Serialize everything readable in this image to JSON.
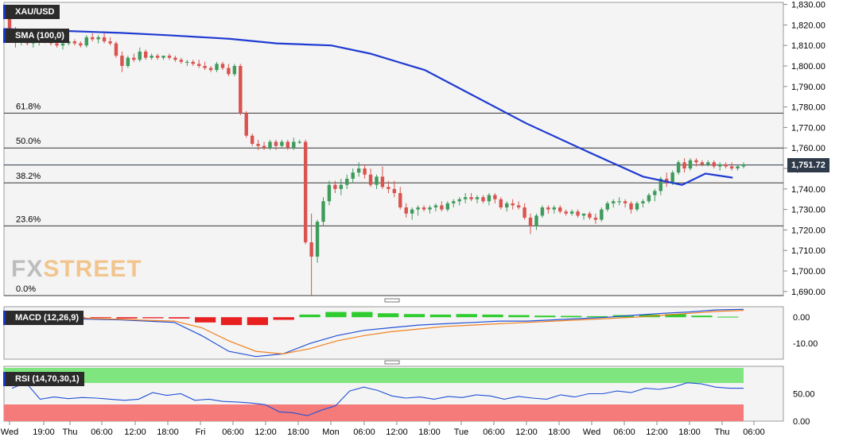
{
  "labels": {
    "symbol": "XAU/USD",
    "sma": "SMA (100,0)",
    "macd": "MACD (12,26,9)",
    "rsi": "RSI (14,70,30,1)",
    "watermark_fx": "FX",
    "watermark_street": "STREET",
    "last_price": "1,751.72"
  },
  "colors": {
    "up": "#3d9b5c",
    "down": "#d9534f",
    "sma": "#1f3bd1",
    "macd_line": "#2251d6",
    "signal_line": "#f0811f",
    "hist_pos": "#2ecc2e",
    "hist_neg": "#e82020",
    "rsi_over": "#7fe57f",
    "rsi_under": "#f57b7b"
  },
  "chart_data": [
    {
      "type": "candlestick",
      "title": "XAU/USD",
      "y_ticks": [
        "1,830.00",
        "1,820.00",
        "1,810.00",
        "1,800.00",
        "1,790.00",
        "1,780.00",
        "1,770.00",
        "1,760.00",
        "1,750.00",
        "1,740.00",
        "1,730.00",
        "1,720.00",
        "1,710.00",
        "1,700.00",
        "1,690.00"
      ],
      "ylim": [
        1688,
        1831
      ],
      "x_ticks": [
        "Wed",
        "19:00",
        "Thu",
        "06:00",
        "12:00",
        "18:00",
        "Fri",
        "06:00",
        "12:00",
        "18:00",
        "Mon",
        "06:00",
        "12:00",
        "18:00",
        "Tue",
        "06:00",
        "12:00",
        "18:00",
        "Wed",
        "06:00",
        "12:00",
        "18:00",
        "Thu",
        "06:00"
      ],
      "fib_levels": [
        {
          "label": "61.8%",
          "value": 1777
        },
        {
          "label": "50.0%",
          "value": 1760
        },
        {
          "label": "38.2%",
          "value": 1743
        },
        {
          "label": "23.6%",
          "value": 1722
        },
        {
          "label": "0.0%",
          "value": 1688
        }
      ],
      "last_price": 1751.72,
      "candles": [
        [
          1828,
          1828,
          1816,
          1818
        ],
        [
          1818,
          1819,
          1809,
          1812
        ],
        [
          1812,
          1815,
          1810,
          1813
        ],
        [
          1813,
          1815,
          1810,
          1811
        ],
        [
          1811,
          1813,
          1809,
          1812
        ],
        [
          1812,
          1814,
          1810,
          1813
        ],
        [
          1813,
          1814,
          1811,
          1812
        ],
        [
          1812,
          1814,
          1810,
          1811
        ],
        [
          1811,
          1812,
          1809,
          1810
        ],
        [
          1810,
          1812,
          1808,
          1811
        ],
        [
          1811,
          1813,
          1810,
          1812
        ],
        [
          1812,
          1813,
          1810,
          1811
        ],
        [
          1811,
          1812,
          1809,
          1810
        ],
        [
          1810,
          1815,
          1809,
          1814
        ],
        [
          1814,
          1816,
          1812,
          1813
        ],
        [
          1813,
          1815,
          1811,
          1814
        ],
        [
          1814,
          1816,
          1811,
          1812
        ],
        [
          1812,
          1814,
          1810,
          1811
        ],
        [
          1811,
          1812,
          1804,
          1805
        ],
        [
          1805,
          1807,
          1797,
          1800
        ],
        [
          1800,
          1805,
          1799,
          1804
        ],
        [
          1804,
          1806,
          1802,
          1803
        ],
        [
          1803,
          1809,
          1802,
          1807
        ],
        [
          1807,
          1808,
          1803,
          1804
        ],
        [
          1804,
          1806,
          1803,
          1805
        ],
        [
          1805,
          1806,
          1803,
          1804
        ],
        [
          1804,
          1805,
          1803,
          1805
        ],
        [
          1805,
          1806,
          1803,
          1804
        ],
        [
          1804,
          1805,
          1802,
          1803
        ],
        [
          1803,
          1804,
          1801,
          1802
        ],
        [
          1802,
          1803,
          1800,
          1802
        ],
        [
          1802,
          1803,
          1800,
          1801
        ],
        [
          1801,
          1803,
          1799,
          1800
        ],
        [
          1800,
          1802,
          1798,
          1799
        ],
        [
          1799,
          1800,
          1797,
          1798
        ],
        [
          1798,
          1802,
          1797,
          1801
        ],
        [
          1801,
          1802,
          1798,
          1799
        ],
        [
          1799,
          1801,
          1795,
          1796
        ],
        [
          1796,
          1801,
          1795,
          1800
        ],
        [
          1800,
          1801,
          1776,
          1777
        ],
        [
          1777,
          1778,
          1765,
          1766
        ],
        [
          1766,
          1767,
          1761,
          1762
        ],
        [
          1762,
          1764,
          1759,
          1761
        ],
        [
          1761,
          1763,
          1759,
          1760
        ],
        [
          1760,
          1764,
          1759,
          1763
        ],
        [
          1763,
          1764,
          1759,
          1761
        ],
        [
          1761,
          1764,
          1760,
          1763
        ],
        [
          1763,
          1764,
          1759,
          1760
        ],
        [
          1760,
          1765,
          1759,
          1763
        ],
        [
          1763,
          1764,
          1762,
          1763
        ],
        [
          1763,
          1764,
          1713,
          1714
        ],
        [
          1714,
          1728,
          1688,
          1707
        ],
        [
          1707,
          1725,
          1704,
          1724
        ],
        [
          1724,
          1736,
          1722,
          1734
        ],
        [
          1734,
          1744,
          1732,
          1742
        ],
        [
          1742,
          1744,
          1738,
          1740
        ],
        [
          1740,
          1745,
          1737,
          1742
        ],
        [
          1742,
          1747,
          1740,
          1745
        ],
        [
          1745,
          1750,
          1743,
          1748
        ],
        [
          1748,
          1753,
          1746,
          1750
        ],
        [
          1750,
          1752,
          1745,
          1747
        ],
        [
          1747,
          1750,
          1741,
          1742
        ],
        [
          1742,
          1747,
          1740,
          1746
        ],
        [
          1746,
          1751,
          1740,
          1741
        ],
        [
          1741,
          1744,
          1738,
          1740
        ],
        [
          1740,
          1744,
          1736,
          1738
        ],
        [
          1738,
          1741,
          1730,
          1731
        ],
        [
          1731,
          1733,
          1726,
          1728
        ],
        [
          1728,
          1731,
          1725,
          1730
        ],
        [
          1730,
          1732,
          1727,
          1731
        ],
        [
          1731,
          1732,
          1729,
          1730
        ],
        [
          1730,
          1732,
          1728,
          1731
        ],
        [
          1731,
          1733,
          1729,
          1732
        ],
        [
          1732,
          1734,
          1729,
          1730
        ],
        [
          1730,
          1734,
          1729,
          1733
        ],
        [
          1733,
          1735,
          1731,
          1734
        ],
        [
          1734,
          1736,
          1732,
          1735
        ],
        [
          1735,
          1738,
          1733,
          1736
        ],
        [
          1736,
          1738,
          1734,
          1735
        ],
        [
          1735,
          1737,
          1733,
          1736
        ],
        [
          1736,
          1737,
          1733,
          1734
        ],
        [
          1734,
          1738,
          1732,
          1737
        ],
        [
          1737,
          1738,
          1733,
          1735
        ],
        [
          1735,
          1736,
          1730,
          1731
        ],
        [
          1731,
          1734,
          1729,
          1733
        ],
        [
          1733,
          1735,
          1730,
          1732
        ],
        [
          1732,
          1734,
          1730,
          1731
        ],
        [
          1731,
          1733,
          1725,
          1726
        ],
        [
          1726,
          1728,
          1718,
          1722
        ],
        [
          1722,
          1728,
          1720,
          1727
        ],
        [
          1727,
          1732,
          1726,
          1731
        ],
        [
          1731,
          1732,
          1728,
          1730
        ],
        [
          1730,
          1732,
          1728,
          1731
        ],
        [
          1731,
          1732,
          1728,
          1729
        ],
        [
          1729,
          1730,
          1727,
          1728
        ],
        [
          1728,
          1730,
          1727,
          1729
        ],
        [
          1729,
          1730,
          1726,
          1727
        ],
        [
          1727,
          1728,
          1725,
          1728
        ],
        [
          1728,
          1729,
          1725,
          1726
        ],
        [
          1726,
          1728,
          1723,
          1725
        ],
        [
          1725,
          1731,
          1724,
          1730
        ],
        [
          1730,
          1734,
          1729,
          1733
        ],
        [
          1733,
          1735,
          1731,
          1734
        ],
        [
          1734,
          1736,
          1732,
          1734
        ],
        [
          1734,
          1735,
          1731,
          1733
        ],
        [
          1733,
          1734,
          1728,
          1730
        ],
        [
          1730,
          1734,
          1729,
          1733
        ],
        [
          1733,
          1735,
          1731,
          1734
        ],
        [
          1734,
          1738,
          1733,
          1737
        ],
        [
          1737,
          1740,
          1734,
          1739
        ],
        [
          1739,
          1746,
          1737,
          1745
        ],
        [
          1745,
          1748,
          1741,
          1743
        ],
        [
          1743,
          1749,
          1742,
          1748
        ],
        [
          1748,
          1754,
          1747,
          1753
        ],
        [
          1753,
          1755,
          1748,
          1750
        ],
        [
          1750,
          1755,
          1749,
          1754
        ],
        [
          1754,
          1755,
          1751,
          1753
        ],
        [
          1753,
          1754,
          1751,
          1752
        ],
        [
          1752,
          1754,
          1751,
          1753
        ],
        [
          1753,
          1754,
          1750,
          1751
        ],
        [
          1751,
          1753,
          1749,
          1752
        ],
        [
          1752,
          1753,
          1750,
          1751
        ],
        [
          1751,
          1753,
          1749,
          1750
        ],
        [
          1750,
          1752,
          1749,
          1751
        ],
        [
          1751,
          1753,
          1750,
          1752
        ]
      ],
      "sma": [
        1818,
        1817.2,
        1816.1,
        1815,
        1813.2,
        1811,
        1810,
        1806,
        1798,
        1786,
        1772,
        1758,
        1746,
        1742,
        1747.5,
        1745.5
      ],
      "sma_x_fraction": [
        0,
        0.07,
        0.15,
        0.21,
        0.29,
        0.35,
        0.42,
        0.47,
        0.54,
        0.6,
        0.67,
        0.75,
        0.82,
        0.87,
        0.9,
        0.935
      ]
    },
    {
      "type": "line",
      "title": "MACD (12,26,9)",
      "y_ticks": [
        "0.00",
        "-10.00"
      ],
      "ylim": [
        -16,
        4
      ],
      "series": [
        {
          "name": "MACD",
          "values": [
            0,
            0.3,
            -0.5,
            -0.8,
            -1,
            -1.5,
            -2,
            -7,
            -13,
            -15,
            -14,
            -10,
            -7,
            -5,
            -4,
            -3,
            -2.5,
            -2,
            -1.5,
            -1.5,
            -1,
            -0.5,
            0,
            0.8,
            1.5,
            2,
            2.8,
            3
          ]
        },
        {
          "name": "Signal",
          "values": [
            0.5,
            0.4,
            0,
            -0.5,
            -0.8,
            -1.2,
            -1.5,
            -4,
            -9,
            -13,
            -14,
            -12,
            -9,
            -7,
            -5.5,
            -4.5,
            -3.5,
            -3,
            -2.5,
            -2,
            -1.5,
            -1,
            -0.5,
            0,
            0.8,
            1.5,
            2.2,
            2.6
          ]
        },
        {
          "name": "Histogram",
          "values": [
            -0.3,
            -0.2,
            -0.2,
            -0.3,
            -0.5,
            -0.4,
            -0.5,
            -2,
            -3,
            -3,
            -1,
            1,
            2,
            2,
            1.5,
            1.2,
            1,
            1.2,
            1,
            0.8,
            0.6,
            0.5,
            0.4,
            0.8,
            1,
            1.2,
            0.6,
            0.2
          ]
        }
      ]
    },
    {
      "type": "line",
      "title": "RSI (14,70,30,1)",
      "y_ticks": [
        "50.00",
        "0.00"
      ],
      "ylim": [
        0,
        100
      ],
      "overbought": 70,
      "oversold": 30,
      "series": [
        {
          "name": "RSI",
          "values": [
            60,
            70,
            40,
            44,
            41,
            43,
            42,
            40,
            38,
            40,
            52,
            47,
            50,
            38,
            40,
            36,
            35,
            33,
            30,
            17,
            15,
            10,
            20,
            28,
            55,
            62,
            56,
            46,
            42,
            44,
            40,
            45,
            43,
            48,
            46,
            40,
            45,
            42,
            40,
            48,
            44,
            50,
            50,
            55,
            52,
            60,
            58,
            62,
            70,
            68,
            62,
            60,
            60
          ]
        }
      ]
    }
  ]
}
